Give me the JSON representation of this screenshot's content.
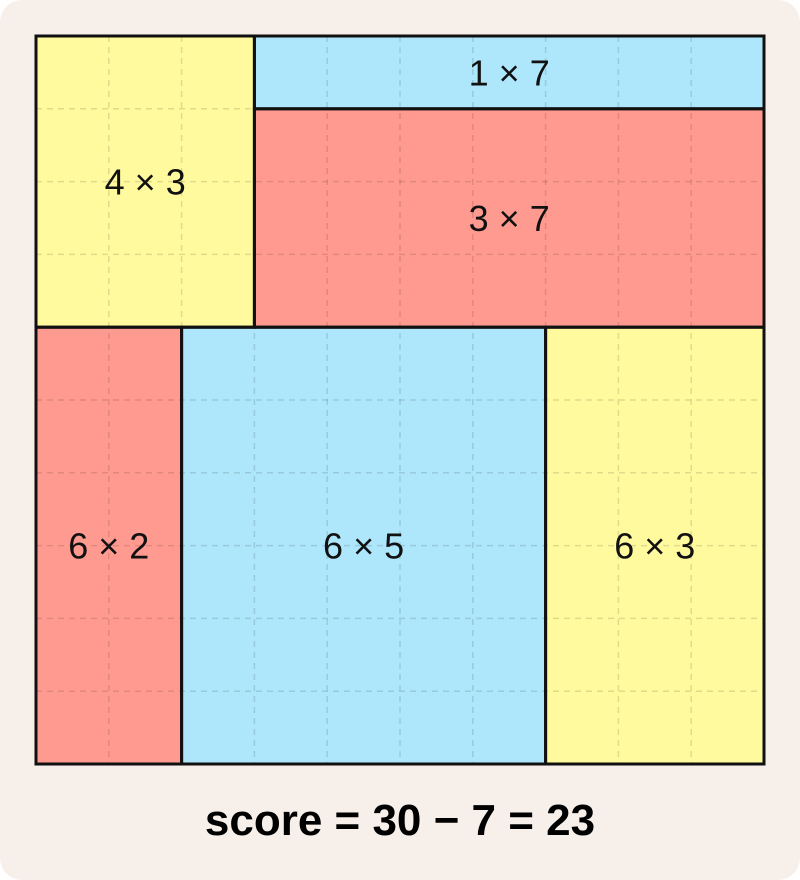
{
  "grid": {
    "rows": 10,
    "cols": 10
  },
  "rectangles": [
    {
      "label": "4 × 3",
      "row": 0,
      "col": 0,
      "h": 4,
      "w": 3,
      "color": "#fffa9e"
    },
    {
      "label": "1 × 7",
      "row": 0,
      "col": 3,
      "h": 1,
      "w": 7,
      "color": "#aee6fb"
    },
    {
      "label": "3 × 7",
      "row": 1,
      "col": 3,
      "h": 3,
      "w": 7,
      "color": "#ff9a90"
    },
    {
      "label": "6 × 2",
      "row": 4,
      "col": 0,
      "h": 6,
      "w": 2,
      "color": "#ff9a90"
    },
    {
      "label": "6 × 5",
      "row": 4,
      "col": 2,
      "h": 6,
      "w": 5,
      "color": "#aee6fb"
    },
    {
      "label": "6 × 3",
      "row": 4,
      "col": 7,
      "h": 6,
      "w": 3,
      "color": "#fffa9e"
    }
  ],
  "score_text": "score = 30 − 7 = 23"
}
